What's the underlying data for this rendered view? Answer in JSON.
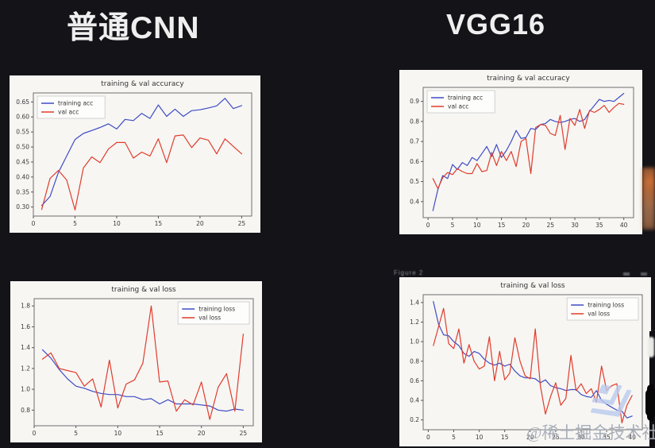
{
  "headers": {
    "left": "普通CNN",
    "right": "VGG16"
  },
  "figure_window_label": "Figure 2",
  "watermark": {
    "text": "@稀土掘金技术社区"
  },
  "colors": {
    "training_line": "#3f4cc4",
    "val_line": "#e03c2c",
    "panel_background": "#f7f6f3",
    "page_background": "#131318",
    "header_text": "#efefef",
    "logo_blue": "#b9cbed"
  },
  "chart_data": [
    {
      "type": "line",
      "column": "普通CNN",
      "title": "training & val accuracy",
      "xlabel": "",
      "ylabel": "",
      "grid": false,
      "legend_pos": "upper left",
      "x_start": 1,
      "xlim": [
        0,
        26.2
      ],
      "ylim": [
        0.27,
        0.68
      ],
      "xticks": [
        0,
        5,
        10,
        15,
        20,
        25
      ],
      "xtick_labels": [
        "0",
        "5",
        "10",
        "15",
        "20",
        "25"
      ],
      "yticks": [
        0.3,
        0.35,
        0.4,
        0.45,
        0.5,
        0.55,
        0.6,
        0.65
      ],
      "ytick_labels": [
        "0.30",
        "0.35",
        "0.40",
        "0.45",
        "0.50",
        "0.55",
        "0.60",
        "0.65"
      ],
      "series": [
        {
          "name": "training acc",
          "color": "#3f4cc4",
          "values": [
            0.305,
            0.335,
            0.415,
            0.47,
            0.525,
            0.545,
            0.555,
            0.565,
            0.577,
            0.56,
            0.592,
            0.588,
            0.612,
            0.595,
            0.64,
            0.602,
            0.626,
            0.602,
            0.621,
            0.624,
            0.63,
            0.637,
            0.662,
            0.628,
            0.638
          ]
        },
        {
          "name": "val acc",
          "color": "#e03c2c",
          "values": [
            0.292,
            0.395,
            0.422,
            0.39,
            0.29,
            0.43,
            0.467,
            0.448,
            0.493,
            0.515,
            0.515,
            0.463,
            0.483,
            0.47,
            0.527,
            0.448,
            0.537,
            0.54,
            0.498,
            0.53,
            0.523,
            0.477,
            0.527,
            0.502,
            0.477
          ]
        }
      ]
    },
    {
      "type": "line",
      "column": "VGG16",
      "title": "training & val accuracy",
      "xlabel": "",
      "ylabel": "",
      "grid": false,
      "legend_pos": "upper left",
      "x_start": 1,
      "xlim": [
        -1,
        42
      ],
      "ylim": [
        0.32,
        0.97
      ],
      "xticks": [
        0,
        5,
        10,
        15,
        20,
        25,
        30,
        35,
        40
      ],
      "xtick_labels": [
        "0",
        "5",
        "10",
        "15",
        "20",
        "25",
        "30",
        "35",
        "40"
      ],
      "yticks": [
        0.4,
        0.5,
        0.6,
        0.7,
        0.8,
        0.9
      ],
      "ytick_labels": [
        "0.4",
        "0.5",
        "0.6",
        "0.7",
        "0.8",
        "0.9"
      ],
      "series": [
        {
          "name": "training acc",
          "color": "#3f4cc4",
          "values": [
            0.355,
            0.46,
            0.53,
            0.515,
            0.585,
            0.56,
            0.595,
            0.58,
            0.62,
            0.605,
            0.64,
            0.675,
            0.625,
            0.685,
            0.62,
            0.655,
            0.7,
            0.755,
            0.715,
            0.72,
            0.765,
            0.76,
            0.785,
            0.79,
            0.81,
            0.8,
            0.795,
            0.8,
            0.81,
            0.815,
            0.8,
            0.81,
            0.85,
            0.88,
            0.91,
            0.9,
            0.905,
            0.9,
            0.92,
            0.94
          ]
        },
        {
          "name": "val acc",
          "color": "#e03c2c",
          "values": [
            0.515,
            0.465,
            0.52,
            0.545,
            0.535,
            0.565,
            0.55,
            0.54,
            0.54,
            0.59,
            0.55,
            0.555,
            0.645,
            0.58,
            0.65,
            0.605,
            0.65,
            0.575,
            0.7,
            0.715,
            0.54,
            0.77,
            0.785,
            0.78,
            0.74,
            0.73,
            0.83,
            0.66,
            0.815,
            0.78,
            0.86,
            0.765,
            0.855,
            0.845,
            0.86,
            0.88,
            0.845,
            0.87,
            0.89,
            0.885
          ]
        }
      ]
    },
    {
      "type": "line",
      "column": "普通CNN",
      "title": "training & val loss",
      "xlabel": "",
      "ylabel": "",
      "grid": false,
      "legend_pos": "upper right",
      "x_start": 1,
      "xlim": [
        0,
        26.2
      ],
      "ylim": [
        0.65,
        1.87
      ],
      "xticks": [
        0,
        5,
        10,
        15,
        20,
        25
      ],
      "xtick_labels": [
        "0",
        "5",
        "10",
        "15",
        "20",
        "25"
      ],
      "yticks": [
        0.8,
        1.0,
        1.2,
        1.4,
        1.6,
        1.8
      ],
      "ytick_labels": [
        "0.8",
        "1.0",
        "1.2",
        "1.4",
        "1.6",
        "1.8"
      ],
      "series": [
        {
          "name": "training loss",
          "color": "#3f4cc4",
          "values": [
            1.38,
            1.3,
            1.19,
            1.1,
            1.03,
            1.01,
            0.98,
            0.96,
            0.95,
            0.95,
            0.93,
            0.93,
            0.9,
            0.91,
            0.86,
            0.9,
            0.86,
            0.86,
            0.86,
            0.85,
            0.84,
            0.8,
            0.79,
            0.81,
            0.8
          ]
        },
        {
          "name": "val loss",
          "color": "#e03c2c",
          "values": [
            1.29,
            1.35,
            1.2,
            1.18,
            1.16,
            1.03,
            1.1,
            0.83,
            1.28,
            0.82,
            1.05,
            1.09,
            1.25,
            1.8,
            1.07,
            1.08,
            0.79,
            0.9,
            0.85,
            1.07,
            0.71,
            1.02,
            1.15,
            0.79,
            1.53
          ]
        }
      ]
    },
    {
      "type": "line",
      "column": "VGG16",
      "title": "training & val loss",
      "xlabel": "",
      "ylabel": "",
      "grid": false,
      "legend_pos": "upper right",
      "x_start": 1,
      "xlim": [
        -1,
        42
      ],
      "ylim": [
        0.1,
        1.48
      ],
      "xticks": [
        0,
        5,
        10,
        15,
        20,
        25,
        30,
        35,
        40
      ],
      "xtick_labels": [
        "0",
        "5",
        "10",
        "15",
        "20",
        "25",
        "30",
        "35",
        "40"
      ],
      "yticks": [
        0.2,
        0.4,
        0.6,
        0.8,
        1.0,
        1.2,
        1.4
      ],
      "ytick_labels": [
        "0.2",
        "0.4",
        "0.6",
        "0.8",
        "1.0",
        "1.2",
        "1.4"
      ],
      "series": [
        {
          "name": "training loss",
          "color": "#3f4cc4",
          "values": [
            1.41,
            1.18,
            1.07,
            1.06,
            1.0,
            0.96,
            0.88,
            0.85,
            0.9,
            0.88,
            0.82,
            0.78,
            0.76,
            0.78,
            0.75,
            0.77,
            0.7,
            0.65,
            0.63,
            0.63,
            0.62,
            0.58,
            0.61,
            0.55,
            0.53,
            0.52,
            0.5,
            0.51,
            0.51,
            0.46,
            0.44,
            0.43,
            0.5,
            0.4,
            0.36,
            0.33,
            0.3,
            0.29,
            0.22,
            0.24
          ]
        },
        {
          "name": "val loss",
          "color": "#e03c2c",
          "values": [
            0.96,
            1.15,
            1.34,
            0.98,
            0.93,
            1.13,
            0.78,
            0.97,
            0.8,
            0.72,
            0.75,
            1.05,
            0.6,
            0.9,
            0.61,
            0.68,
            1.04,
            0.8,
            0.65,
            0.62,
            1.13,
            0.55,
            0.26,
            0.44,
            0.58,
            0.35,
            0.42,
            0.86,
            0.5,
            0.57,
            0.47,
            0.52,
            0.38,
            0.75,
            0.5,
            0.55,
            0.57,
            0.17,
            0.35,
            0.45
          ]
        }
      ]
    }
  ]
}
